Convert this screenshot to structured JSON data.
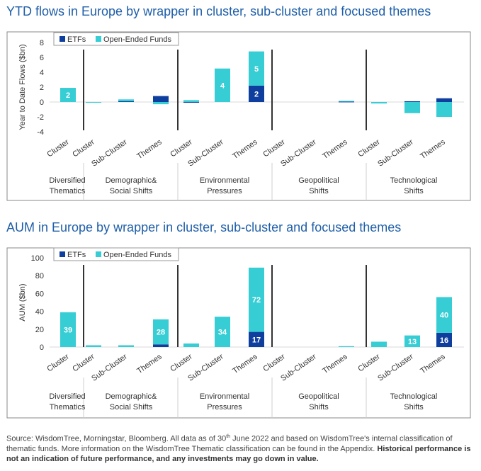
{
  "colors": {
    "etf": "#0f3f9e",
    "oef": "#36cdd4",
    "title": "#1f5fa8",
    "divider": "#333333",
    "frame": "#888888"
  },
  "legend": {
    "etf": "ETFs",
    "oef": "Open-Ended Funds"
  },
  "groups": [
    "Diversified\nThematics",
    "Demographic&\nSocial Shifts",
    "Environmental\nPressures",
    "Geopolitical\nShifts",
    "Technological\nShifts"
  ],
  "chart_data": [
    {
      "type": "bar",
      "stacked": true,
      "title": "YTD flows in Europe by wrapper in cluster, sub-cluster and focused themes",
      "ylabel": "Year to Date Flows ($bn)",
      "ylim": [
        -4,
        8
      ],
      "yticks": [
        8,
        6,
        4,
        2,
        0,
        -2,
        -4
      ],
      "categories": [
        "Cluster",
        "Cluster",
        "Sub-Cluster",
        "Themes",
        "Cluster",
        "Sub-Cluster",
        "Themes",
        "Cluster",
        "Sub-Cluster",
        "Themes",
        "Cluster",
        "Sub-Cluster",
        "Themes"
      ],
      "series": [
        {
          "name": "ETFs",
          "values": [
            0,
            0,
            0.1,
            0.8,
            -0.1,
            0,
            2.2,
            0,
            0,
            0.05,
            0,
            0.1,
            0.5
          ]
        },
        {
          "name": "Open-Ended Funds",
          "values": [
            1.9,
            -0.1,
            0.25,
            -0.3,
            0.25,
            4.5,
            4.6,
            0,
            0,
            0.1,
            -0.2,
            -1.5,
            -2.0
          ]
        }
      ],
      "data_labels": [
        {
          "index": 0,
          "series": "Open-Ended Funds",
          "text": "2"
        },
        {
          "index": 5,
          "series": "Open-Ended Funds",
          "text": "4"
        },
        {
          "index": 6,
          "series": "Open-Ended Funds",
          "text": "5"
        },
        {
          "index": 6,
          "series": "ETFs",
          "text": "2"
        }
      ],
      "legend_position": "top-left"
    },
    {
      "type": "bar",
      "stacked": true,
      "title": "AUM in Europe by wrapper in cluster, sub-cluster and focused themes",
      "ylabel": "AUM ($bn)",
      "ylim": [
        0,
        100
      ],
      "yticks": [
        100,
        80,
        60,
        40,
        20,
        0
      ],
      "categories": [
        "Cluster",
        "Cluster",
        "Sub-Cluster",
        "Themes",
        "Cluster",
        "Sub-Cluster",
        "Themes",
        "Cluster",
        "Sub-Cluster",
        "Themes",
        "Cluster",
        "Sub-Cluster",
        "Themes"
      ],
      "series": [
        {
          "name": "ETFs",
          "values": [
            0,
            0,
            0,
            3,
            0,
            0,
            17,
            0,
            0,
            0,
            0,
            0,
            16
          ]
        },
        {
          "name": "Open-Ended Funds",
          "values": [
            39,
            2,
            2,
            28,
            4,
            34,
            72,
            0,
            0,
            1,
            6,
            13,
            40
          ]
        }
      ],
      "data_labels": [
        {
          "index": 0,
          "series": "Open-Ended Funds",
          "text": "39"
        },
        {
          "index": 3,
          "series": "Open-Ended Funds",
          "text": "28"
        },
        {
          "index": 5,
          "series": "Open-Ended Funds",
          "text": "34"
        },
        {
          "index": 6,
          "series": "Open-Ended Funds",
          "text": "72"
        },
        {
          "index": 6,
          "series": "ETFs",
          "text": "17"
        },
        {
          "index": 11,
          "series": "Open-Ended Funds",
          "text": "13"
        },
        {
          "index": 12,
          "series": "Open-Ended Funds",
          "text": "40"
        },
        {
          "index": 12,
          "series": "ETFs",
          "text": "16"
        }
      ],
      "legend_position": "top-left"
    }
  ],
  "footer": {
    "source_a": "Source: WisdomTree, Morningstar, Bloomberg. All data as of 30",
    "source_sup": "th",
    "source_b": " June 2022 and based on WisdomTree's internal classification of thematic funds. More information on the WisdomTree Thematic classification can be found in the Appendix. ",
    "disclaimer": "Historical performance is not an indication of future performance, and any investments may go down in value."
  }
}
